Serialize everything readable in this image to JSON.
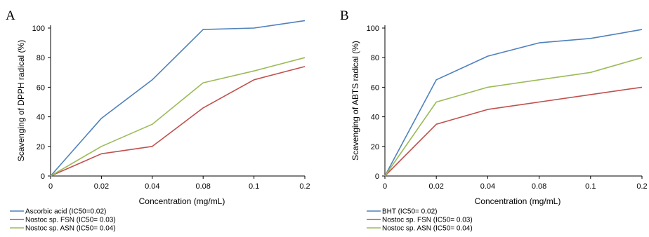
{
  "chart_data": [
    {
      "panel": "A",
      "type": "line",
      "categories": [
        "0",
        "0.02",
        "0.04",
        "0.08",
        "0.1",
        "0.2"
      ],
      "xlabel": "Concentration (mg/mL)",
      "ylabel": "Scavenging of DPPH radical (%)",
      "ylim": [
        0,
        100
      ],
      "yticks": [
        "0",
        "20",
        "40",
        "60",
        "80",
        "100"
      ],
      "grid": false,
      "legend_position": "bottom-left",
      "series": [
        {
          "name": "Ascorbic acid (IC50=0.02)",
          "color": "#4F81BD",
          "values": [
            0,
            39,
            65,
            99,
            100,
            105
          ]
        },
        {
          "name": "Nostoc sp. FSN  (IC50= 0.03)",
          "color": "#C0504D",
          "values": [
            0,
            15,
            20,
            46,
            65,
            74
          ]
        },
        {
          "name": "Nostoc sp. ASN  (IC50= 0.04)",
          "color": "#9BBB59",
          "values": [
            0,
            20,
            35,
            63,
            71,
            80
          ]
        }
      ]
    },
    {
      "panel": "B",
      "type": "line",
      "categories": [
        "0",
        "0.02",
        "0.04",
        "0.08",
        "0.1",
        "0.2"
      ],
      "xlabel": "Concentration (mg/mL)",
      "ylabel": "Scavenging of ABTS  radical (%)",
      "ylim": [
        0,
        100
      ],
      "yticks": [
        "0",
        "20",
        "40",
        "60",
        "80",
        "100"
      ],
      "grid": false,
      "legend_position": "bottom-left",
      "series": [
        {
          "name": "BHT (IC50= 0.02)",
          "color": "#4F81BD",
          "values": [
            0,
            65,
            81,
            90,
            93,
            99
          ]
        },
        {
          "name": "Nostoc sp. FSN  (IC50= 0.03)",
          "color": "#C0504D",
          "values": [
            0,
            35,
            45,
            50,
            55,
            60
          ]
        },
        {
          "name": "Nostoc sp. ASN  (IC50= 0.04)",
          "color": "#9BBB59",
          "values": [
            0,
            50,
            60,
            65,
            70,
            80
          ]
        }
      ]
    }
  ]
}
